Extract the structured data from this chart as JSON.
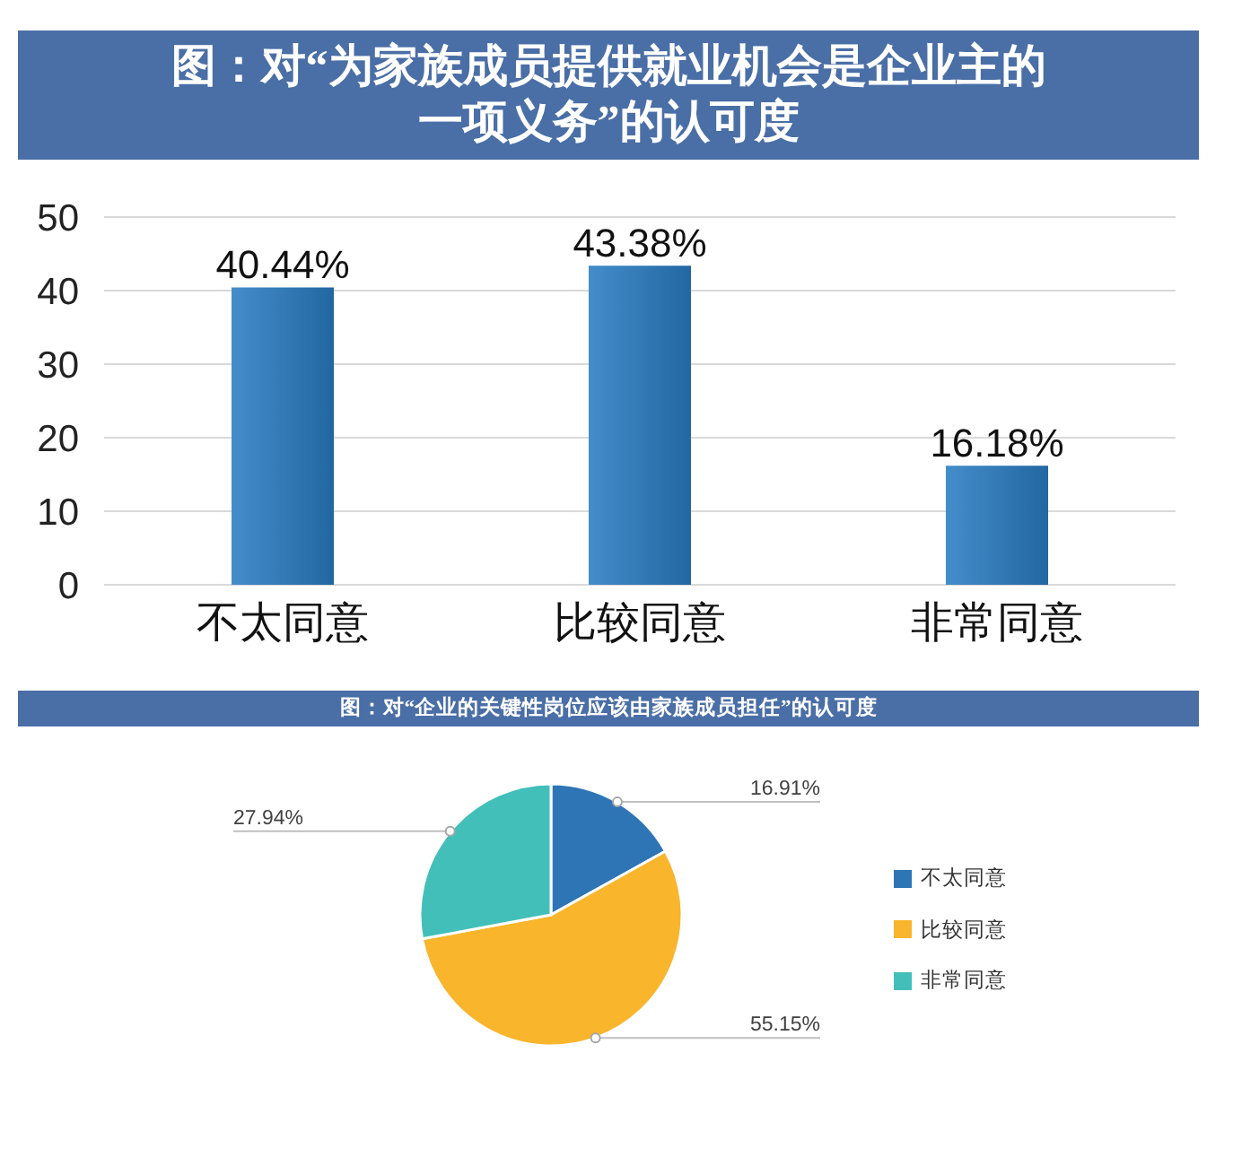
{
  "chart_data": [
    {
      "type": "bar",
      "title": "图：对“为家族成员提供就业机会是企业主的一项义务”的认可度",
      "categories": [
        "不太同意",
        "比较同意",
        "非常同意"
      ],
      "values": [
        40.44,
        43.38,
        16.18
      ],
      "value_labels": [
        "40.44%",
        "43.38%",
        "16.18%"
      ],
      "color": "#2a7dc4",
      "ylim": [
        0,
        50
      ],
      "yticks": [
        0,
        10,
        20,
        30,
        40,
        50
      ],
      "grid": "y"
    },
    {
      "type": "pie",
      "title": "图：对“企业的关键性岗位应该由家族成员担任”的认可度",
      "categories": [
        "不太同意",
        "比较同意",
        "非常同意"
      ],
      "values": [
        16.91,
        55.15,
        27.94
      ],
      "value_labels": [
        "16.91%",
        "55.15%",
        "27.94%"
      ],
      "colors": [
        "#2e75b6",
        "#f9b52c",
        "#43bfb9"
      ],
      "legend": "right"
    }
  ]
}
